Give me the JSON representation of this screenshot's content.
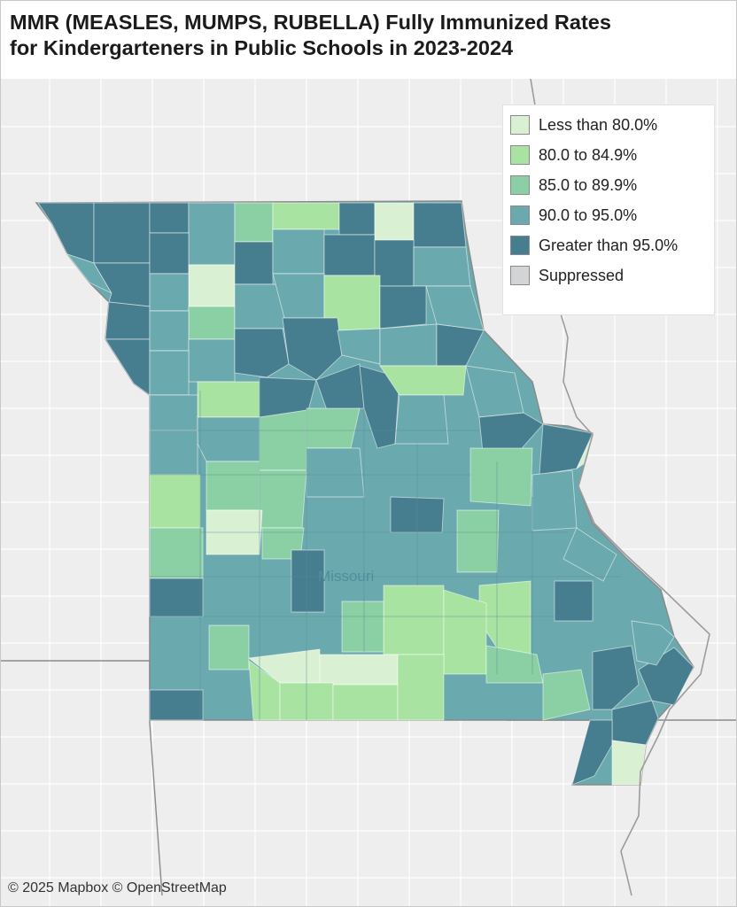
{
  "title": {
    "line1": "MMR (MEASLES, MUMPS, RUBELLA) Fully Immunized Rates",
    "line2": "for Kindergarteners in Public Schools in 2023-2024"
  },
  "legend": {
    "placement": "top-right",
    "items": [
      {
        "label": "Less than 80.0%",
        "color": "#d9f0d3"
      },
      {
        "label": "80.0 to 84.9%",
        "color": "#a8e3a1"
      },
      {
        "label": "85.0 to 89.9%",
        "color": "#8bd0a4"
      },
      {
        "label": "90.0 to 95.0%",
        "color": "#6aa9ad"
      },
      {
        "label": "Greater than 95.0%",
        "color": "#467d8f"
      },
      {
        "label": "Suppressed",
        "color": "#d2d4d6"
      }
    ]
  },
  "map": {
    "state_label": "Missouri",
    "colors": {
      "land": "#eeeeee",
      "county_line": "#ffffff",
      "state_line": "#8a8a8a",
      "river": "#9c9c9c"
    }
  },
  "attribution": "© 2025 Mapbox © OpenStreetMap"
}
